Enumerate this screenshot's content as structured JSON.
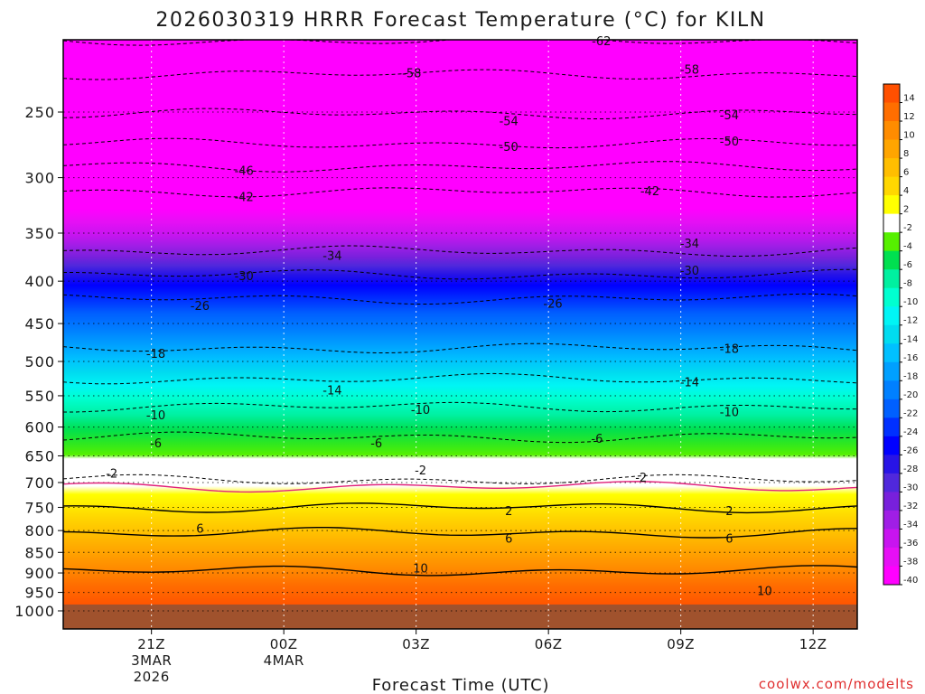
{
  "chart_data": {
    "type": "time-height contour",
    "title": "2026030319 HRRR Forecast Temperature (°C) for KILN",
    "xlabel": "Forecast Time (UTC)",
    "ylabel": "",
    "credit": "coolwx.com/modelts",
    "y_axis": {
      "units": "hPa",
      "scale": "log-pressure",
      "range": [
        1000,
        200
      ],
      "ticks": [
        {
          "value": 250,
          "label": "250"
        },
        {
          "value": 300,
          "label": "300"
        },
        {
          "value": 350,
          "label": "350"
        },
        {
          "value": 400,
          "label": "400"
        },
        {
          "value": 450,
          "label": "450"
        },
        {
          "value": 500,
          "label": "500"
        },
        {
          "value": 550,
          "label": "550"
        },
        {
          "value": 600,
          "label": "600"
        },
        {
          "value": 650,
          "label": "650"
        },
        {
          "value": 700,
          "label": "700"
        },
        {
          "value": 750,
          "label": "750"
        },
        {
          "value": 800,
          "label": "800"
        },
        {
          "value": 850,
          "label": "850"
        },
        {
          "value": 900,
          "label": "900"
        },
        {
          "value": 950,
          "label": "950"
        },
        {
          "value": 1000,
          "label": "1000"
        }
      ]
    },
    "x_axis": {
      "units": "hours after 2026-03-03 19Z",
      "range": [
        0,
        18
      ],
      "ticks": [
        {
          "hour": 2,
          "lines": [
            "21Z",
            "3MAR",
            "2026"
          ]
        },
        {
          "hour": 5,
          "lines": [
            "00Z",
            "4MAR"
          ]
        },
        {
          "hour": 8,
          "lines": [
            "03Z"
          ]
        },
        {
          "hour": 11,
          "lines": [
            "06Z"
          ]
        },
        {
          "hour": 14,
          "lines": [
            "09Z"
          ]
        },
        {
          "hour": 17,
          "lines": [
            "12Z"
          ]
        }
      ]
    },
    "colorbar": {
      "labels": [
        "14",
        "12",
        "10",
        "8",
        "6",
        "4",
        "2",
        "-2",
        "-4",
        "-6",
        "-8",
        "-10",
        "-12",
        "-14",
        "-16",
        "-18",
        "-20",
        "-22",
        "-24",
        "-26",
        "-28",
        "-30",
        "-32",
        "-34",
        "-36",
        "-38",
        "-40"
      ],
      "colors": [
        "#ff5000",
        "#ff6e00",
        "#ff8c00",
        "#ffa500",
        "#ffbe00",
        "#ffd700",
        "#ffff00",
        "#ffffff",
        "#56f000",
        "#00e050",
        "#00f0a0",
        "#00ffd0",
        "#00f5f5",
        "#00dcf0",
        "#00c0ff",
        "#00a0ff",
        "#0080ff",
        "#0060ff",
        "#0030ff",
        "#0000ff",
        "#2814e6",
        "#5028dc",
        "#7820dc",
        "#a01ee6",
        "#c814f0",
        "#e60ff5",
        "#ff00ff"
      ]
    },
    "isotherm_profile": {
      "levels_c": [
        -62,
        -58,
        -54,
        -50,
        -46,
        -42,
        -34,
        -30,
        -26,
        -18,
        -14,
        -10,
        -6,
        -2,
        0,
        2,
        6,
        10
      ],
      "pressure_hpa": [
        205,
        225,
        251,
        273,
        291,
        312,
        368,
        393,
        420,
        482,
        525,
        567,
        617,
        695,
        708,
        750,
        805,
        895
      ]
    },
    "contour_labels": [
      {
        "value": "-62",
        "hour": 12.2,
        "p": 205
      },
      {
        "value": "-58",
        "hour": 7.9,
        "p": 224
      },
      {
        "value": "-58",
        "hour": 14.2,
        "p": 222
      },
      {
        "value": "-54",
        "hour": 10.1,
        "p": 256
      },
      {
        "value": "-54",
        "hour": 15.1,
        "p": 252
      },
      {
        "value": "-50",
        "hour": 10.1,
        "p": 275
      },
      {
        "value": "-50",
        "hour": 15.1,
        "p": 271
      },
      {
        "value": "-46",
        "hour": 4.1,
        "p": 294
      },
      {
        "value": "-42",
        "hour": 4.1,
        "p": 316
      },
      {
        "value": "-42",
        "hour": 13.3,
        "p": 311
      },
      {
        "value": "-34",
        "hour": 6.1,
        "p": 372
      },
      {
        "value": "-34",
        "hour": 14.2,
        "p": 360
      },
      {
        "value": "-30",
        "hour": 4.1,
        "p": 394
      },
      {
        "value": "-30",
        "hour": 14.2,
        "p": 388
      },
      {
        "value": "-26",
        "hour": 3.1,
        "p": 428
      },
      {
        "value": "-26",
        "hour": 11.1,
        "p": 425
      },
      {
        "value": "-18",
        "hour": 2.1,
        "p": 489
      },
      {
        "value": "-18",
        "hour": 15.1,
        "p": 482
      },
      {
        "value": "-14",
        "hour": 6.1,
        "p": 541
      },
      {
        "value": "-14",
        "hour": 14.2,
        "p": 529
      },
      {
        "value": "-10",
        "hour": 2.1,
        "p": 580
      },
      {
        "value": "-10",
        "hour": 8.1,
        "p": 571
      },
      {
        "value": "-10",
        "hour": 15.1,
        "p": 575
      },
      {
        "value": "-6",
        "hour": 2.1,
        "p": 627
      },
      {
        "value": "-6",
        "hour": 7.1,
        "p": 627
      },
      {
        "value": "-6",
        "hour": 12.1,
        "p": 619
      },
      {
        "value": "-2",
        "hour": 1.1,
        "p": 682
      },
      {
        "value": "-2",
        "hour": 8.1,
        "p": 676
      },
      {
        "value": "-2",
        "hour": 13.1,
        "p": 690
      },
      {
        "value": "2",
        "hour": 10.1,
        "p": 757
      },
      {
        "value": "2",
        "hour": 15.1,
        "p": 757
      },
      {
        "value": "6",
        "hour": 3.1,
        "p": 795
      },
      {
        "value": "6",
        "hour": 10.1,
        "p": 817
      },
      {
        "value": "6",
        "hour": 15.1,
        "p": 817
      },
      {
        "value": "10",
        "hour": 8.1,
        "p": 887
      },
      {
        "value": "10",
        "hour": 15.9,
        "p": 945
      }
    ]
  }
}
